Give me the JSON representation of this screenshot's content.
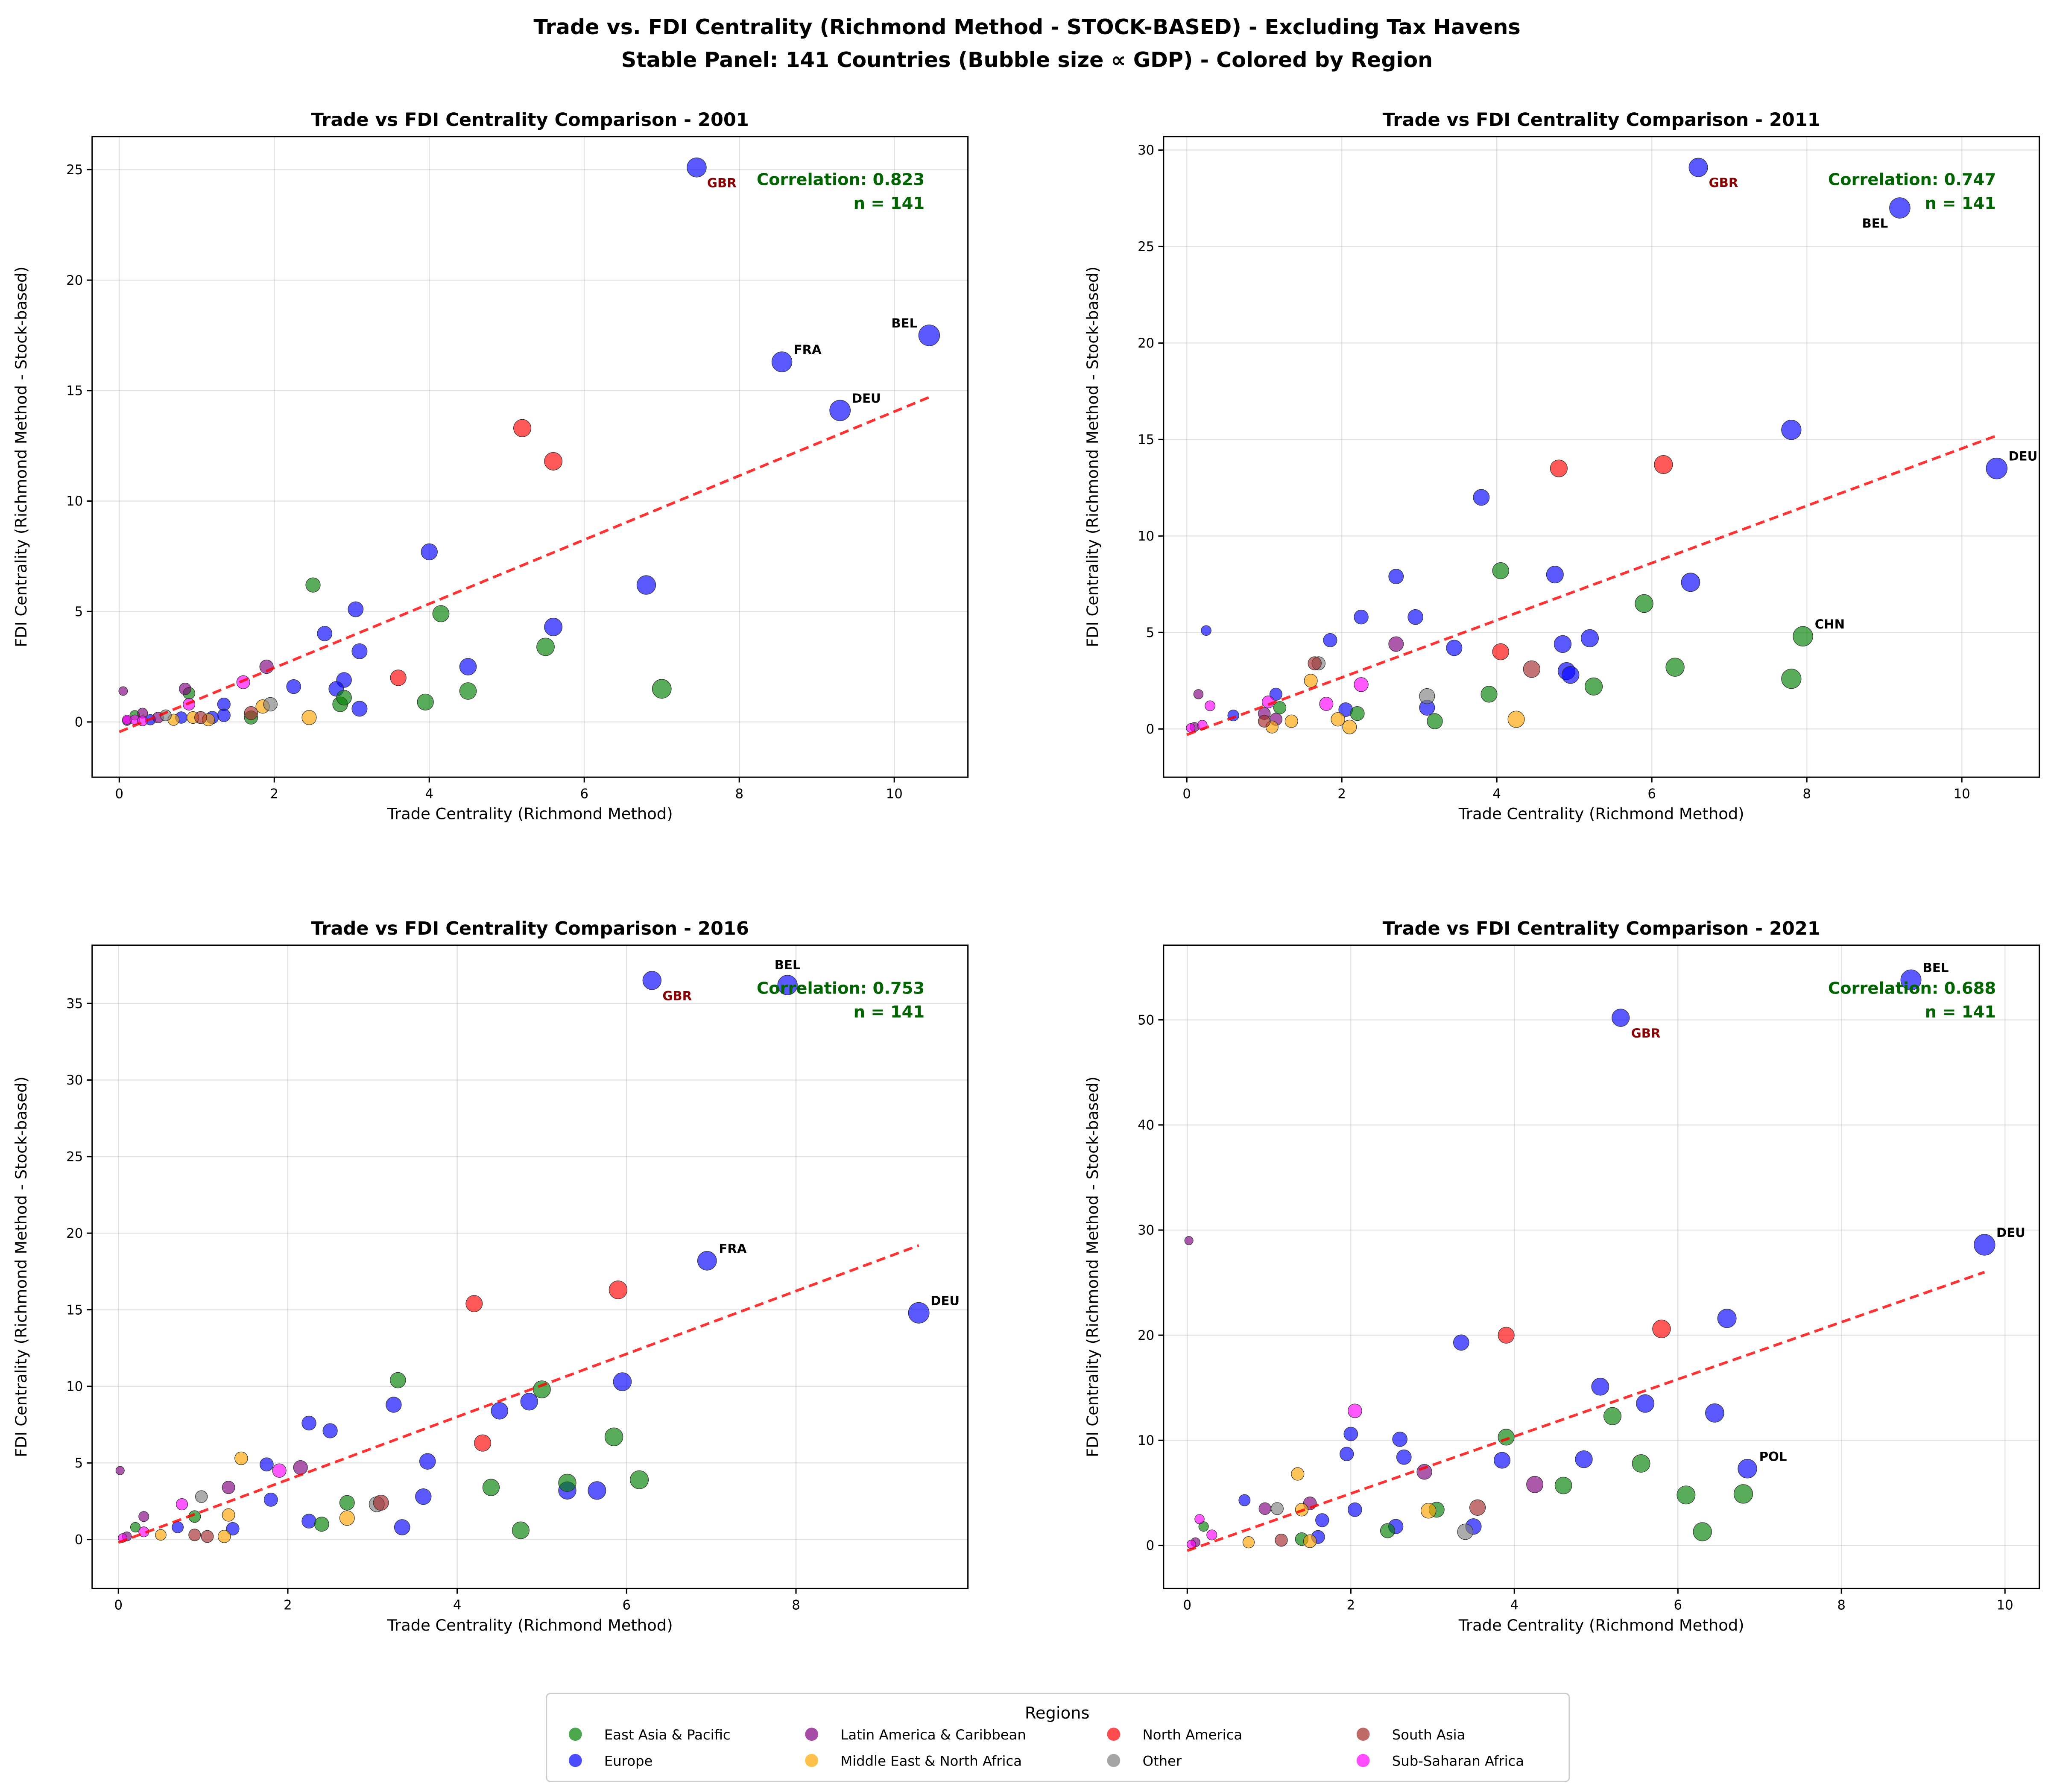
{
  "title_line1": "Trade vs. FDI Centrality (Richmond Method - STOCK-BASED) - Excluding Tax Havens",
  "title_line2": "Stable Panel: 141 Countries (Bubble size ∝ GDP) - Colored by Region",
  "legend": {
    "title": "Regions",
    "placement": "bottom-center",
    "entries": [
      {
        "key": "E",
        "label": "East Asia & Pacific",
        "color": "#008000"
      },
      {
        "key": "U",
        "label": "Europe",
        "color": "#0000ff"
      },
      {
        "key": "L",
        "label": "Latin America & Caribbean",
        "color": "#800080"
      },
      {
        "key": "M",
        "label": "Middle East & North Africa",
        "color": "#ffa500"
      },
      {
        "key": "N",
        "label": "North America",
        "color": "#ff0000"
      },
      {
        "key": "O",
        "label": "Other",
        "color": "#808080"
      },
      {
        "key": "S",
        "label": "South Asia",
        "color": "#a52a2a"
      },
      {
        "key": "A",
        "label": "Sub-Saharan Africa",
        "color": "#ff00ff"
      }
    ]
  },
  "trend_color": "#ff0000",
  "chart_data": [
    {
      "type": "scatter",
      "title": "Trade vs FDI Centrality Comparison - 2001",
      "xlabel": "Trade Centrality (Richmond Method)",
      "ylabel": "FDI Centrality (Richmond Method - Stock-based)",
      "xlim": [
        -0.35,
        10.95
      ],
      "ylim": [
        -2.5,
        26.5
      ],
      "xticks": [
        0,
        2,
        4,
        6,
        8,
        10
      ],
      "yticks": [
        0,
        5,
        10,
        15,
        20,
        25
      ],
      "grid": true,
      "correlation": "Correlation: 0.823",
      "n": "n = 141",
      "trend": [
        [
          0,
          -0.45
        ],
        [
          10.45,
          14.7
        ]
      ],
      "points": [
        [
          7.45,
          25.1,
          "U",
          "GBR"
        ],
        [
          10.45,
          17.5,
          "U",
          "BEL"
        ],
        [
          8.55,
          16.3,
          "U",
          "FRA"
        ],
        [
          9.3,
          14.1,
          "U",
          "DEU"
        ],
        [
          6.8,
          6.2,
          "U"
        ],
        [
          4.0,
          7.7,
          "U"
        ],
        [
          5.6,
          4.3,
          "U"
        ],
        [
          3.05,
          5.1,
          "U"
        ],
        [
          2.65,
          4.0,
          "U"
        ],
        [
          3.1,
          3.2,
          "U"
        ],
        [
          2.9,
          1.9,
          "U"
        ],
        [
          2.25,
          1.6,
          "U"
        ],
        [
          2.8,
          1.5,
          "U"
        ],
        [
          4.5,
          2.5,
          "U"
        ],
        [
          3.1,
          0.6,
          "U"
        ],
        [
          1.35,
          0.8,
          "U"
        ],
        [
          1.2,
          0.2,
          "U"
        ],
        [
          1.35,
          0.3,
          "U"
        ],
        [
          0.8,
          0.2,
          "U"
        ],
        [
          0.4,
          0.1,
          "U"
        ],
        [
          5.2,
          13.3,
          "N"
        ],
        [
          5.6,
          11.8,
          "N"
        ],
        [
          3.6,
          2.0,
          "N"
        ],
        [
          2.5,
          6.2,
          "E"
        ],
        [
          4.15,
          4.9,
          "E"
        ],
        [
          5.5,
          3.4,
          "E"
        ],
        [
          4.5,
          1.4,
          "E"
        ],
        [
          7.0,
          1.5,
          "E"
        ],
        [
          3.95,
          0.9,
          "E"
        ],
        [
          2.85,
          0.8,
          "E"
        ],
        [
          2.9,
          1.1,
          "E"
        ],
        [
          1.7,
          0.2,
          "E"
        ],
        [
          0.9,
          1.3,
          "E"
        ],
        [
          0.2,
          0.3,
          "E"
        ],
        [
          1.9,
          2.5,
          "L"
        ],
        [
          0.85,
          1.5,
          "L"
        ],
        [
          0.05,
          1.4,
          "L"
        ],
        [
          0.3,
          0.4,
          "L"
        ],
        [
          0.5,
          0.2,
          "L"
        ],
        [
          0.1,
          0.05,
          "L"
        ],
        [
          2.45,
          0.2,
          "M"
        ],
        [
          0.95,
          0.2,
          "M"
        ],
        [
          1.15,
          0.1,
          "M"
        ],
        [
          1.85,
          0.7,
          "M"
        ],
        [
          0.7,
          0.1,
          "M"
        ],
        [
          1.95,
          0.8,
          "O"
        ],
        [
          0.6,
          0.3,
          "O"
        ],
        [
          1.7,
          0.4,
          "S"
        ],
        [
          1.05,
          0.2,
          "S"
        ],
        [
          1.6,
          1.8,
          "A"
        ],
        [
          0.1,
          0.1,
          "A"
        ],
        [
          0.2,
          0.1,
          "A"
        ],
        [
          0.9,
          0.8,
          "A"
        ],
        [
          0.3,
          0.05,
          "A"
        ]
      ]
    },
    {
      "type": "scatter",
      "title": "Trade vs FDI Centrality Comparison - 2011",
      "xlabel": "Trade Centrality (Richmond Method)",
      "ylabel": "FDI Centrality (Richmond Method - Stock-based)",
      "xlim": [
        -0.3,
        11.0
      ],
      "ylim": [
        -2.5,
        30.7
      ],
      "xticks": [
        0,
        2,
        4,
        6,
        8,
        10
      ],
      "yticks": [
        0,
        5,
        10,
        15,
        20,
        25,
        30
      ],
      "grid": true,
      "correlation": "Correlation: 0.747",
      "n": "n = 141",
      "trend": [
        [
          0,
          -0.3
        ],
        [
          10.45,
          15.2
        ]
      ],
      "points": [
        [
          6.6,
          29.1,
          "U",
          "GBR"
        ],
        [
          9.2,
          27.0,
          "U",
          "BEL"
        ],
        [
          10.45,
          13.5,
          "U",
          "DEU"
        ],
        [
          7.8,
          15.5,
          "U"
        ],
        [
          3.8,
          12.0,
          "U"
        ],
        [
          2.7,
          7.9,
          "U"
        ],
        [
          4.75,
          8.0,
          "U"
        ],
        [
          6.5,
          7.6,
          "U"
        ],
        [
          2.25,
          5.8,
          "U"
        ],
        [
          2.95,
          5.8,
          "U"
        ],
        [
          1.85,
          4.6,
          "U"
        ],
        [
          3.45,
          4.2,
          "U"
        ],
        [
          4.85,
          4.4,
          "U"
        ],
        [
          5.2,
          4.7,
          "U"
        ],
        [
          4.9,
          3.0,
          "U"
        ],
        [
          4.95,
          2.8,
          "U"
        ],
        [
          0.25,
          5.1,
          "U"
        ],
        [
          2.05,
          1.0,
          "U"
        ],
        [
          1.15,
          1.8,
          "U"
        ],
        [
          3.1,
          1.1,
          "U"
        ],
        [
          0.6,
          0.7,
          "U"
        ],
        [
          4.8,
          13.5,
          "N"
        ],
        [
          6.15,
          13.7,
          "N"
        ],
        [
          4.05,
          4.0,
          "N"
        ],
        [
          4.05,
          8.2,
          "E"
        ],
        [
          5.9,
          6.5,
          "E"
        ],
        [
          7.95,
          4.8,
          "E",
          "CHN"
        ],
        [
          6.3,
          3.2,
          "E"
        ],
        [
          7.8,
          2.6,
          "E"
        ],
        [
          5.25,
          2.2,
          "E"
        ],
        [
          3.9,
          1.8,
          "E"
        ],
        [
          3.2,
          0.4,
          "E"
        ],
        [
          2.2,
          0.8,
          "E"
        ],
        [
          1.2,
          1.1,
          "E"
        ],
        [
          2.7,
          4.4,
          "L"
        ],
        [
          0.15,
          1.8,
          "L"
        ],
        [
          1.0,
          0.8,
          "L"
        ],
        [
          1.15,
          0.5,
          "L"
        ],
        [
          0.1,
          0.1,
          "L"
        ],
        [
          4.25,
          0.5,
          "M"
        ],
        [
          1.6,
          2.5,
          "M"
        ],
        [
          1.95,
          0.5,
          "M"
        ],
        [
          2.1,
          0.1,
          "M"
        ],
        [
          1.35,
          0.4,
          "M"
        ],
        [
          1.1,
          0.1,
          "M"
        ],
        [
          3.1,
          1.7,
          "O"
        ],
        [
          1.7,
          3.4,
          "O"
        ],
        [
          4.45,
          3.1,
          "S"
        ],
        [
          1.65,
          3.4,
          "S"
        ],
        [
          1.0,
          0.4,
          "S"
        ],
        [
          2.25,
          2.3,
          "A"
        ],
        [
          1.8,
          1.3,
          "A"
        ],
        [
          0.3,
          1.2,
          "A"
        ],
        [
          1.05,
          1.4,
          "A"
        ],
        [
          0.2,
          0.2,
          "A"
        ],
        [
          0.05,
          0.05,
          "A"
        ]
      ]
    },
    {
      "type": "scatter",
      "title": "Trade vs FDI Centrality Comparison - 2016",
      "xlabel": "Trade Centrality (Richmond Method)",
      "ylabel": "FDI Centrality (Richmond Method - Stock-based)",
      "xlim": [
        -0.31,
        10.03
      ],
      "ylim": [
        -3.2,
        38.8
      ],
      "xticks": [
        0,
        2,
        4,
        6,
        8
      ],
      "yticks": [
        0,
        5,
        10,
        15,
        20,
        25,
        30,
        35
      ],
      "grid": true,
      "correlation": "Correlation: 0.753",
      "n": "n = 141",
      "trend": [
        [
          0,
          -0.2
        ],
        [
          9.45,
          19.2
        ]
      ],
      "points": [
        [
          6.3,
          36.5,
          "U",
          "GBR"
        ],
        [
          7.9,
          36.2,
          "U",
          "BEL"
        ],
        [
          6.95,
          18.2,
          "U",
          "FRA"
        ],
        [
          9.45,
          14.8,
          "U",
          "DEU"
        ],
        [
          5.95,
          10.3,
          "U"
        ],
        [
          4.85,
          9.0,
          "U"
        ],
        [
          4.5,
          8.4,
          "U"
        ],
        [
          3.25,
          8.8,
          "U"
        ],
        [
          2.25,
          7.6,
          "U"
        ],
        [
          2.5,
          7.1,
          "U"
        ],
        [
          3.65,
          5.1,
          "U"
        ],
        [
          1.75,
          4.9,
          "U"
        ],
        [
          1.8,
          2.6,
          "U"
        ],
        [
          3.6,
          2.8,
          "U"
        ],
        [
          5.3,
          3.2,
          "U"
        ],
        [
          5.65,
          3.2,
          "U"
        ],
        [
          2.25,
          1.2,
          "U"
        ],
        [
          3.35,
          0.8,
          "U"
        ],
        [
          1.35,
          0.7,
          "U"
        ],
        [
          0.7,
          0.8,
          "U"
        ],
        [
          4.2,
          15.4,
          "N"
        ],
        [
          5.9,
          16.3,
          "N"
        ],
        [
          4.3,
          6.3,
          "N"
        ],
        [
          3.3,
          10.4,
          "E"
        ],
        [
          5.0,
          9.8,
          "E"
        ],
        [
          5.85,
          6.7,
          "E"
        ],
        [
          6.15,
          3.9,
          "E"
        ],
        [
          5.3,
          3.7,
          "E"
        ],
        [
          4.4,
          3.4,
          "E"
        ],
        [
          2.7,
          2.4,
          "E"
        ],
        [
          2.4,
          1.0,
          "E"
        ],
        [
          4.75,
          0.6,
          "E"
        ],
        [
          0.9,
          1.5,
          "E"
        ],
        [
          0.2,
          0.8,
          "E"
        ],
        [
          2.15,
          4.7,
          "L"
        ],
        [
          1.3,
          3.4,
          "L"
        ],
        [
          0.02,
          4.5,
          "L"
        ],
        [
          0.3,
          1.5,
          "L"
        ],
        [
          0.1,
          0.2,
          "L"
        ],
        [
          1.45,
          5.3,
          "M"
        ],
        [
          2.7,
          1.4,
          "M"
        ],
        [
          1.3,
          1.6,
          "M"
        ],
        [
          1.25,
          0.2,
          "M"
        ],
        [
          0.5,
          0.3,
          "M"
        ],
        [
          0.98,
          2.8,
          "O"
        ],
        [
          3.05,
          2.3,
          "O"
        ],
        [
          3.1,
          2.4,
          "S"
        ],
        [
          1.05,
          0.2,
          "S"
        ],
        [
          0.9,
          0.3,
          "S"
        ],
        [
          0.75,
          2.3,
          "A"
        ],
        [
          1.9,
          4.5,
          "A"
        ],
        [
          0.3,
          0.5,
          "A"
        ],
        [
          0.05,
          0.1,
          "A"
        ]
      ]
    },
    {
      "type": "scatter",
      "title": "Trade vs FDI Centrality Comparison - 2021",
      "xlabel": "Trade Centrality (Richmond Method)",
      "ylabel": "FDI Centrality (Richmond Method - Stock-based)",
      "xlim": [
        -0.29,
        10.42
      ],
      "ylim": [
        -4.1,
        57.1
      ],
      "xticks": [
        0,
        2,
        4,
        6,
        8,
        10
      ],
      "yticks": [
        0,
        10,
        20,
        30,
        40,
        50
      ],
      "grid": true,
      "correlation": "Correlation: 0.688",
      "n": "n = 141",
      "trend": [
        [
          0,
          -0.5
        ],
        [
          9.75,
          26.0
        ]
      ],
      "points": [
        [
          8.85,
          53.8,
          "U",
          "BEL"
        ],
        [
          5.3,
          50.2,
          "U",
          "GBR"
        ],
        [
          9.75,
          28.6,
          "U",
          "DEU"
        ],
        [
          6.6,
          21.6,
          "U"
        ],
        [
          3.35,
          19.3,
          "U"
        ],
        [
          5.05,
          15.1,
          "U"
        ],
        [
          5.6,
          13.5,
          "U"
        ],
        [
          6.45,
          12.6,
          "U"
        ],
        [
          2.6,
          10.1,
          "U"
        ],
        [
          2.0,
          10.6,
          "U"
        ],
        [
          1.95,
          8.7,
          "U"
        ],
        [
          2.65,
          8.4,
          "U"
        ],
        [
          3.85,
          8.1,
          "U"
        ],
        [
          4.85,
          8.2,
          "U"
        ],
        [
          6.85,
          7.3,
          "U",
          "POL"
        ],
        [
          0.7,
          4.3,
          "U"
        ],
        [
          2.05,
          3.4,
          "U"
        ],
        [
          1.65,
          2.4,
          "U"
        ],
        [
          2.55,
          1.8,
          "U"
        ],
        [
          3.5,
          1.8,
          "U"
        ],
        [
          1.6,
          0.8,
          "U"
        ],
        [
          3.9,
          20.0,
          "N"
        ],
        [
          5.8,
          20.6,
          "N"
        ],
        [
          3.9,
          10.3,
          "E"
        ],
        [
          5.2,
          12.3,
          "E"
        ],
        [
          5.55,
          7.8,
          "E"
        ],
        [
          4.6,
          5.7,
          "E"
        ],
        [
          6.1,
          4.8,
          "E"
        ],
        [
          6.8,
          4.9,
          "E"
        ],
        [
          6.3,
          1.3,
          "E"
        ],
        [
          3.05,
          3.4,
          "E"
        ],
        [
          2.45,
          1.4,
          "E"
        ],
        [
          1.4,
          0.6,
          "E"
        ],
        [
          0.2,
          1.8,
          "E"
        ],
        [
          2.9,
          7.0,
          "L"
        ],
        [
          0.95,
          3.5,
          "L"
        ],
        [
          0.02,
          29.0,
          "L"
        ],
        [
          4.25,
          5.8,
          "L"
        ],
        [
          1.5,
          4.0,
          "L"
        ],
        [
          0.1,
          0.3,
          "L"
        ],
        [
          1.35,
          6.8,
          "M"
        ],
        [
          2.95,
          3.3,
          "M"
        ],
        [
          1.4,
          3.4,
          "M"
        ],
        [
          1.5,
          0.4,
          "M"
        ],
        [
          0.75,
          0.3,
          "M"
        ],
        [
          3.4,
          1.3,
          "O"
        ],
        [
          1.1,
          3.5,
          "O"
        ],
        [
          3.55,
          3.6,
          "S"
        ],
        [
          1.15,
          0.5,
          "S"
        ],
        [
          2.05,
          12.8,
          "A"
        ],
        [
          0.15,
          2.5,
          "A"
        ],
        [
          0.3,
          1.0,
          "A"
        ],
        [
          0.05,
          0.1,
          "A"
        ]
      ]
    }
  ]
}
